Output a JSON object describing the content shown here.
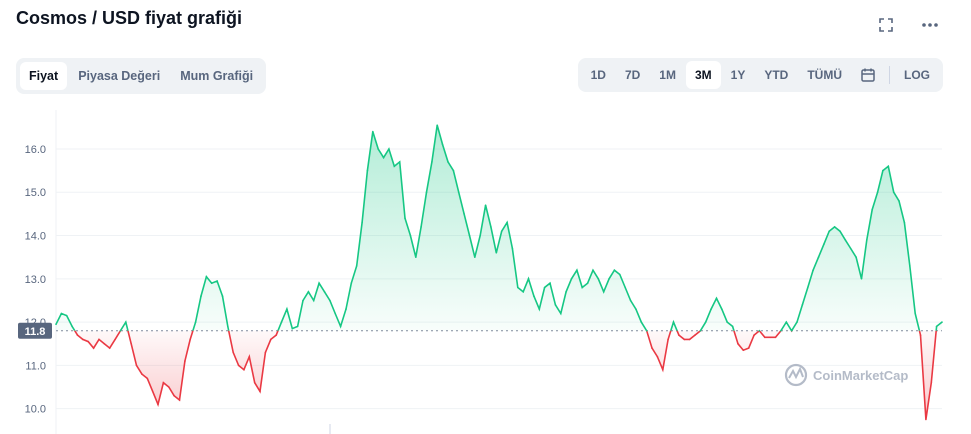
{
  "header": {
    "title": "Cosmos / USD fiyat grafiği"
  },
  "top_icons": [
    "fullscreen-icon",
    "more-icon"
  ],
  "tabs": [
    {
      "label": "Fiyat",
      "active": true
    },
    {
      "label": "Piyasa Değeri",
      "active": false
    },
    {
      "label": "Mum Grafiği",
      "active": false
    }
  ],
  "ranges": {
    "items": [
      {
        "label": "1D",
        "active": false
      },
      {
        "label": "7D",
        "active": false
      },
      {
        "label": "1M",
        "active": false
      },
      {
        "label": "3M",
        "active": true
      },
      {
        "label": "1Y",
        "active": false
      },
      {
        "label": "YTD",
        "active": false
      },
      {
        "label": "TÜMÜ",
        "active": false
      }
    ],
    "calendar_icon": "calendar-icon",
    "log_label": "LOG"
  },
  "watermark": "CoinMarketCap",
  "colors": {
    "up": "#16c784",
    "down": "#ea3943",
    "baseline": "#808a9d"
  },
  "chart_data": {
    "type": "area",
    "title": "",
    "xlabel": "",
    "ylabel": "",
    "ylim": [
      9.6,
      16.9
    ],
    "yticks": [
      10.0,
      11.0,
      12.0,
      13.0,
      14.0,
      15.0,
      16.0
    ],
    "baseline": 11.8,
    "baseline_label": "11.8",
    "grid": true,
    "series": [
      {
        "values": [
          11.95,
          12.2,
          12.15,
          11.9,
          11.7,
          11.6,
          11.55,
          11.4,
          11.6,
          11.5,
          11.4,
          11.6,
          11.8,
          12.0,
          11.5,
          11.0,
          10.8,
          10.7,
          10.4,
          10.1,
          10.6,
          10.5,
          10.3,
          10.2,
          11.1,
          11.6,
          12.0,
          12.6,
          13.05,
          12.9,
          12.95,
          12.6,
          11.9,
          11.3,
          11.0,
          10.9,
          11.2,
          10.6,
          10.4,
          11.3,
          11.6,
          11.7,
          12.0,
          12.3,
          11.85,
          11.9,
          12.5,
          12.7,
          12.5,
          12.9,
          12.7,
          12.5,
          12.2,
          11.9,
          12.3,
          12.9,
          13.3,
          14.3,
          15.5,
          16.4,
          16.0,
          15.8,
          16.0,
          15.6,
          15.7,
          14.4,
          14.0,
          13.5,
          14.2,
          15.0,
          15.7,
          16.55,
          16.1,
          15.7,
          15.5,
          15.0,
          14.5,
          14.0,
          13.5,
          14.0,
          14.7,
          14.2,
          13.6,
          14.1,
          14.3,
          13.7,
          12.8,
          12.7,
          13.0,
          12.6,
          12.3,
          12.8,
          12.9,
          12.4,
          12.2,
          12.7,
          13.0,
          13.2,
          12.8,
          12.9,
          13.2,
          13.0,
          12.7,
          13.0,
          13.2,
          13.1,
          12.8,
          12.5,
          12.3,
          12.0,
          11.8,
          11.4,
          11.2,
          10.9,
          11.6,
          12.0,
          11.7,
          11.6,
          11.6,
          11.7,
          11.8,
          12.0,
          12.3,
          12.55,
          12.3,
          12.0,
          11.9,
          11.5,
          11.35,
          11.4,
          11.7,
          11.8,
          11.65,
          11.65,
          11.65,
          11.8,
          12.0,
          11.8,
          12.0,
          12.4,
          12.8,
          13.2,
          13.5,
          13.8,
          14.1,
          14.2,
          14.1,
          13.9,
          13.7,
          13.5,
          13.0,
          13.9,
          14.6,
          15.0,
          15.5,
          15.6,
          15.0,
          14.8,
          14.3,
          13.3,
          12.2,
          11.7,
          9.75,
          10.6,
          11.9,
          12.0
        ]
      }
    ]
  }
}
